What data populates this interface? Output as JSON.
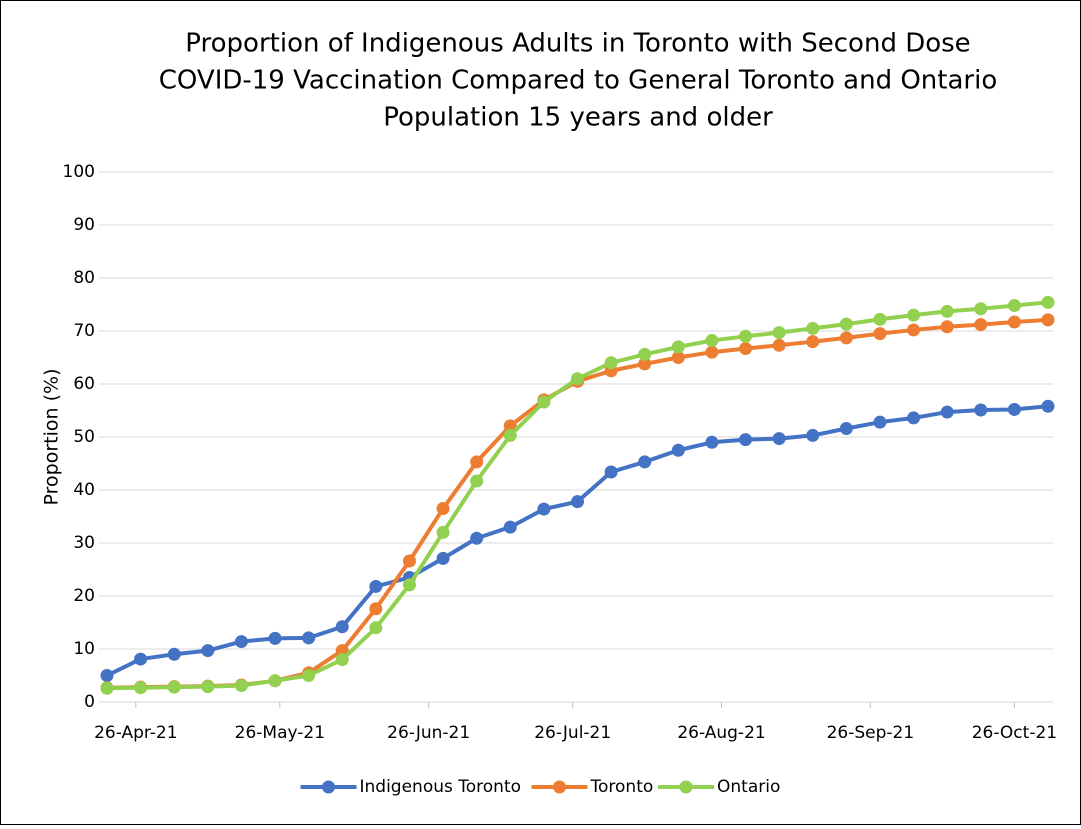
{
  "chart_data": {
    "type": "line",
    "title": [
      "Proportion of Indigenous Adults in Toronto with Second Dose",
      "COVID-19 Vaccination Compared to General Toronto and Ontario",
      "Population 15 years and older"
    ],
    "y_label": "Proportion (%)",
    "x": [
      "2021-04-20",
      "2021-04-27",
      "2021-05-04",
      "2021-05-11",
      "2021-05-18",
      "2021-05-25",
      "2021-06-01",
      "2021-06-08",
      "2021-06-15",
      "2021-06-22",
      "2021-06-29",
      "2021-07-06",
      "2021-07-13",
      "2021-07-20",
      "2021-07-27",
      "2021-08-03",
      "2021-08-10",
      "2021-08-17",
      "2021-08-24",
      "2021-08-31",
      "2021-09-07",
      "2021-09-14",
      "2021-09-21",
      "2021-09-28",
      "2021-10-05",
      "2021-10-12",
      "2021-10-19",
      "2021-10-26",
      "2021-11-02"
    ],
    "series": [
      {
        "name": "Indigenous Toronto",
        "color": "#4472c4",
        "values": [
          5.0,
          8.1,
          9.0,
          9.7,
          11.4,
          12.0,
          12.1,
          14.2,
          21.8,
          23.5,
          27.1,
          30.9,
          33.0,
          36.4,
          37.8,
          43.4,
          45.3,
          47.5,
          49.0,
          49.5,
          49.7,
          50.3,
          51.6,
          52.8,
          53.6,
          54.7,
          55.1,
          55.2,
          55.8
        ]
      },
      {
        "name": "Toronto",
        "color": "#ed7d31",
        "values": [
          2.7,
          2.8,
          2.9,
          3.0,
          3.2,
          4.0,
          5.5,
          9.7,
          17.6,
          26.6,
          36.5,
          45.3,
          52.1,
          57.0,
          60.5,
          62.5,
          63.8,
          65.0,
          66.0,
          66.7,
          67.3,
          68.0,
          68.7,
          69.5,
          70.2,
          70.8,
          71.2,
          71.7,
          72.1
        ]
      },
      {
        "name": "Ontario",
        "color": "#92d050",
        "values": [
          2.6,
          2.7,
          2.8,
          2.9,
          3.1,
          4.0,
          5.0,
          8.0,
          14.0,
          22.1,
          32.0,
          41.7,
          50.3,
          56.6,
          61.0,
          64.0,
          65.6,
          67.0,
          68.2,
          69.0,
          69.7,
          70.5,
          71.3,
          72.2,
          73.0,
          73.7,
          74.2,
          74.8,
          75.4
        ]
      }
    ],
    "xlim": [
      "2021-04-20",
      "2021-11-02"
    ],
    "xticks": [
      {
        "value": "2021-04-26",
        "label": "26-Apr-21"
      },
      {
        "value": "2021-05-26",
        "label": "26-May-21"
      },
      {
        "value": "2021-06-26",
        "label": "26-Jun-21"
      },
      {
        "value": "2021-07-26",
        "label": "26-Jul-21"
      },
      {
        "value": "2021-08-26",
        "label": "26-Aug-21"
      },
      {
        "value": "2021-09-26",
        "label": "26-Sep-21"
      },
      {
        "value": "2021-10-26",
        "label": "26-Oct-21"
      }
    ],
    "ylim": [
      0,
      100
    ],
    "yticks": [
      0,
      10,
      20,
      30,
      40,
      50,
      60,
      70,
      80,
      90,
      100
    ],
    "grid": true,
    "legend": "bottom"
  }
}
